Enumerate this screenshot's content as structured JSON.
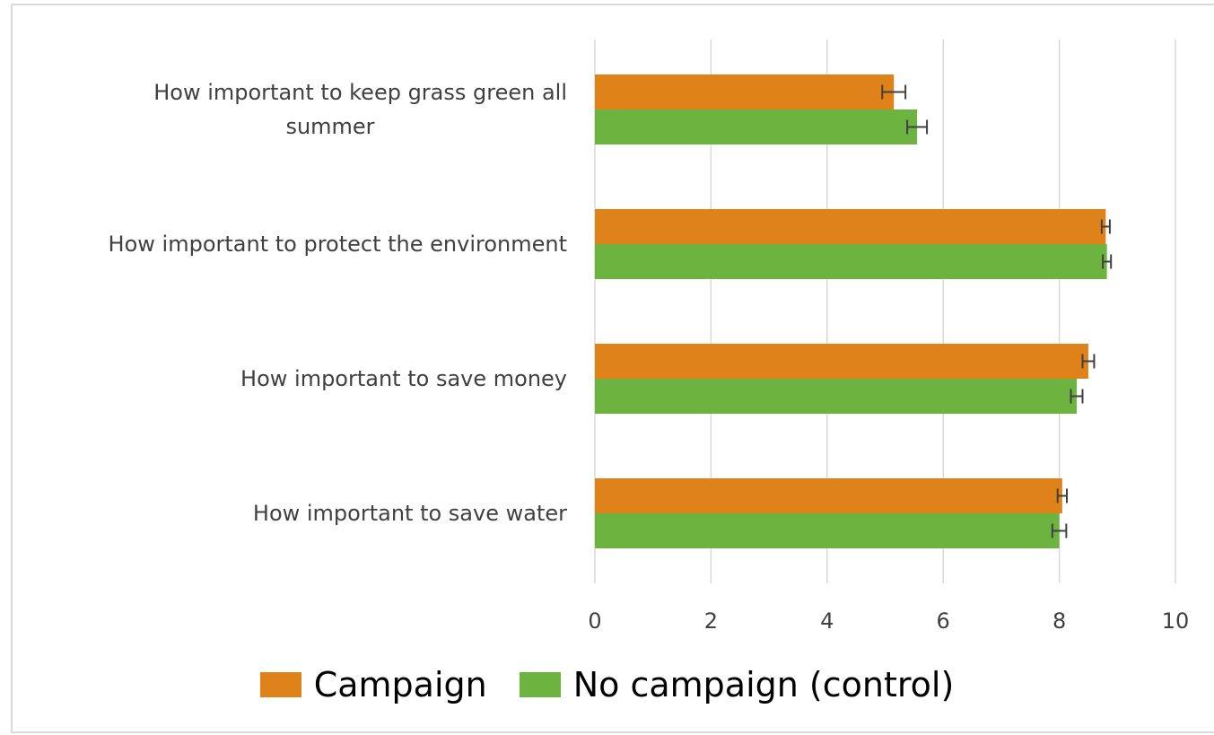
{
  "chart_data": {
    "type": "bar",
    "orientation": "horizontal",
    "categories": [
      [
        "How important to keep grass green all",
        "summer"
      ],
      [
        "How important to protect the environment"
      ],
      [
        "How important to save money"
      ],
      [
        "How important to save water"
      ]
    ],
    "series": [
      {
        "name": "Campaign",
        "color": "#e0821a",
        "values": [
          5.15,
          8.8,
          8.5,
          8.05
        ],
        "error": [
          0.2,
          0.07,
          0.1,
          0.08
        ]
      },
      {
        "name": "No campaign (control)",
        "color": "#6db33f",
        "values": [
          5.55,
          8.82,
          8.3,
          8.0
        ],
        "error": [
          0.17,
          0.07,
          0.1,
          0.12
        ]
      }
    ],
    "xlim": [
      0,
      10
    ],
    "xticks": [
      "0",
      "2",
      "4",
      "6",
      "8",
      "10"
    ],
    "grid": true,
    "legend_position": "bottom"
  }
}
